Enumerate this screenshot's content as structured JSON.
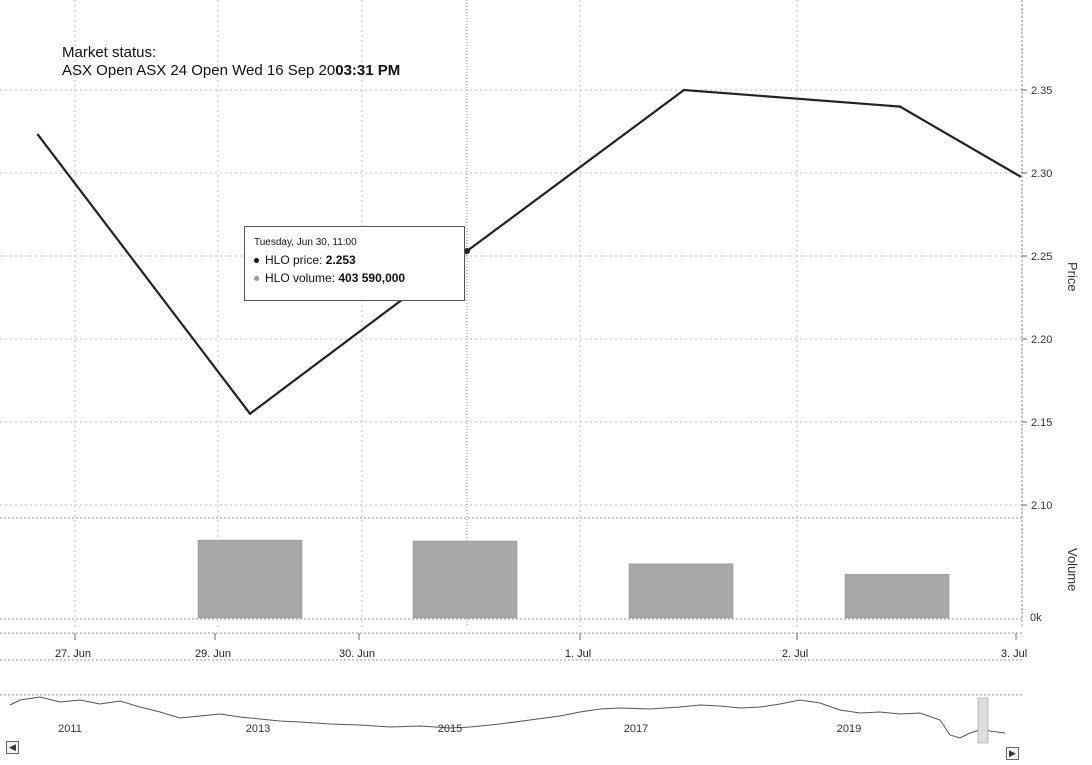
{
  "market_status": {
    "label": "Market status:",
    "text": "ASX Open ASX 24 Open Wed 16 Sep 20",
    "time": "03:31 PM"
  },
  "tooltip": {
    "title": "Tuesday, Jun 30, 11:00",
    "price_label": "HLO price: ",
    "price_value": "2.253",
    "volume_label": "HLO volume: ",
    "volume_value": "403 590,000"
  },
  "navigator": {
    "years": [
      "2011",
      "2013",
      "2015",
      "2017",
      "2019"
    ],
    "left_button": "◀",
    "right_button": "▶"
  },
  "colors": {
    "price_line": "#222222",
    "volume_bar": "#a8a8a8",
    "grid": "#bdbdbd"
  },
  "chart_data": {
    "type": "line",
    "xlabels": [
      "27. Jun",
      "29. Jun",
      "30. Jun",
      "1. Jul",
      "2. Jul",
      "3. Jul"
    ],
    "price": {
      "name": "HLO price",
      "axis_label": "Price",
      "points": [
        {
          "x": "Jun 26, 16:00",
          "y": 2.323
        },
        {
          "x": "Jun 29, 11:00",
          "y": 2.155
        },
        {
          "x": "Jun 30, 11:00",
          "y": 2.253
        },
        {
          "x": "Jul 1, 11:00",
          "y": 2.35
        },
        {
          "x": "Jul 2, 11:00",
          "y": 2.34
        },
        {
          "x": "Jul 3, 11:00",
          "y": 2.298
        }
      ],
      "yticks": [
        "2.10",
        "2.15",
        "2.20",
        "2.25",
        "2.30",
        "2.35"
      ],
      "ylim": [
        2.1,
        2.35
      ]
    },
    "volume": {
      "name": "HLO volume",
      "axis_label": "Volume",
      "bars": [
        {
          "x": "Jun 29",
          "value": 0.82
        },
        {
          "x": "Jun 30",
          "value": 0.81
        },
        {
          "x": "Jul 1",
          "value": 0.57
        },
        {
          "x": "Jul 2",
          "value": 0.46
        }
      ],
      "bar_values_note": "",
      "ytick": "0k"
    },
    "grid": true
  }
}
